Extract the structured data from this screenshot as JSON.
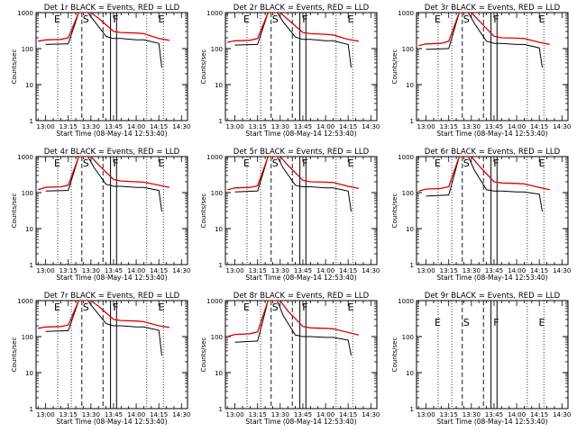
{
  "figure": {
    "xlabel": "Start Time (08-May-14 12:53:40)",
    "ylabel": "Counts/sec",
    "x_ticks": [
      "13:00",
      "13:15",
      "13:30",
      "13:45",
      "14:00",
      "14:15",
      "14:30"
    ],
    "y_ticks": [
      "1",
      "10",
      "100",
      "1000"
    ],
    "marker_letters": {
      "E": "E",
      "S": "S",
      "F": "F"
    },
    "colors": {
      "events": "#000000",
      "lld": "#dd0000",
      "axes": "#000000"
    }
  },
  "chart_data": [
    {
      "type": "line",
      "title": "Det 1r BLACK = Events, RED = LLD",
      "xlim": [
        "12:53:40",
        "14:34:00"
      ],
      "ylim": [
        1,
        1000
      ],
      "yscale": "log",
      "series": [
        {
          "name": "Events",
          "x": [
            "13:00",
            "13:14",
            "13:15",
            "13:22",
            "13:25",
            "13:28",
            "13:32",
            "13:40",
            "13:43",
            "13:45",
            "13:50",
            "14:00",
            "14:05",
            "14:15",
            "14:17"
          ],
          "y": [
            130,
            135,
            135,
            1000,
            1000,
            1000,
            600,
            220,
            200,
            190,
            190,
            175,
            175,
            140,
            30
          ]
        },
        {
          "name": "LLD",
          "x": [
            "12:55",
            "13:00",
            "13:10",
            "13:15",
            "13:22",
            "13:25",
            "13:30",
            "13:35",
            "13:45",
            "13:50",
            "14:00",
            "14:05",
            "14:15",
            "14:22"
          ],
          "y": [
            160,
            175,
            180,
            200,
            1000,
            1000,
            1000,
            700,
            300,
            280,
            270,
            260,
            190,
            170
          ]
        }
      ]
    },
    {
      "type": "line",
      "title": "Det 2r BLACK = Events, RED = LLD",
      "xlim": [
        "12:53:40",
        "14:34:00"
      ],
      "ylim": [
        1,
        1000
      ],
      "yscale": "log",
      "series": [
        {
          "name": "Events",
          "x": [
            "13:00",
            "13:14",
            "13:15",
            "13:22",
            "13:25",
            "13:28",
            "13:32",
            "13:40",
            "13:43",
            "13:45",
            "13:50",
            "14:00",
            "14:05",
            "14:15",
            "14:17"
          ],
          "y": [
            125,
            130,
            130,
            1000,
            1000,
            1000,
            550,
            210,
            190,
            180,
            180,
            165,
            165,
            130,
            30
          ]
        },
        {
          "name": "LLD",
          "x": [
            "12:55",
            "13:00",
            "13:10",
            "13:15",
            "13:22",
            "13:25",
            "13:30",
            "13:35",
            "13:45",
            "13:50",
            "14:00",
            "14:05",
            "14:15",
            "14:22"
          ],
          "y": [
            150,
            165,
            170,
            190,
            1000,
            1000,
            1000,
            650,
            280,
            260,
            250,
            240,
            180,
            160
          ]
        }
      ]
    },
    {
      "type": "line",
      "title": "Det 3r BLACK = Events, RED = LLD",
      "xlim": [
        "12:53:40",
        "14:34:00"
      ],
      "ylim": [
        1,
        1000
      ],
      "yscale": "log",
      "series": [
        {
          "name": "Events",
          "x": [
            "13:00",
            "13:14",
            "13:15",
            "13:22",
            "13:25",
            "13:28",
            "13:32",
            "13:40",
            "13:43",
            "13:45",
            "13:50",
            "14:00",
            "14:05",
            "14:15",
            "14:17"
          ],
          "y": [
            95,
            100,
            100,
            1000,
            1000,
            1000,
            500,
            160,
            150,
            140,
            140,
            130,
            130,
            105,
            30
          ]
        },
        {
          "name": "LLD",
          "x": [
            "12:55",
            "13:00",
            "13:10",
            "13:15",
            "13:22",
            "13:25",
            "13:30",
            "13:35",
            "13:45",
            "13:50",
            "14:00",
            "14:05",
            "14:15",
            "14:22"
          ],
          "y": [
            120,
            135,
            140,
            160,
            1000,
            1000,
            1000,
            600,
            220,
            200,
            195,
            190,
            150,
            130
          ]
        }
      ]
    },
    {
      "type": "line",
      "title": "Det 4r BLACK = Events, RED = LLD",
      "xlim": [
        "12:53:40",
        "14:34:00"
      ],
      "ylim": [
        1,
        1000
      ],
      "yscale": "log",
      "series": [
        {
          "name": "Events",
          "x": [
            "13:00",
            "13:14",
            "13:15",
            "13:22",
            "13:25",
            "13:28",
            "13:32",
            "13:40",
            "13:43",
            "13:45",
            "13:50",
            "14:00",
            "14:05",
            "14:15",
            "14:17"
          ],
          "y": [
            110,
            115,
            115,
            1000,
            1000,
            1000,
            500,
            170,
            160,
            150,
            150,
            140,
            140,
            115,
            30
          ]
        },
        {
          "name": "LLD",
          "x": [
            "12:55",
            "13:00",
            "13:10",
            "13:15",
            "13:22",
            "13:25",
            "13:30",
            "13:35",
            "13:45",
            "13:50",
            "14:00",
            "14:05",
            "14:15",
            "14:22"
          ],
          "y": [
            120,
            140,
            145,
            160,
            1000,
            1000,
            1000,
            600,
            230,
            210,
            200,
            195,
            160,
            140
          ]
        }
      ]
    },
    {
      "type": "line",
      "title": "Det 5r BLACK = Events, RED = LLD",
      "xlim": [
        "12:53:40",
        "14:34:00"
      ],
      "ylim": [
        1,
        1000
      ],
      "yscale": "log",
      "series": [
        {
          "name": "Events",
          "x": [
            "13:00",
            "13:14",
            "13:15",
            "13:22",
            "13:25",
            "13:28",
            "13:32",
            "13:40",
            "13:43",
            "13:45",
            "13:50",
            "14:00",
            "14:05",
            "14:15",
            "14:17"
          ],
          "y": [
            105,
            110,
            110,
            1000,
            1000,
            1000,
            480,
            160,
            150,
            145,
            145,
            135,
            135,
            110,
            30
          ]
        },
        {
          "name": "LLD",
          "x": [
            "12:55",
            "13:00",
            "13:10",
            "13:15",
            "13:22",
            "13:25",
            "13:30",
            "13:35",
            "13:45",
            "13:50",
            "14:00",
            "14:05",
            "14:15",
            "14:22"
          ],
          "y": [
            120,
            135,
            140,
            155,
            1000,
            1000,
            1000,
            580,
            220,
            200,
            195,
            190,
            150,
            130
          ]
        }
      ]
    },
    {
      "type": "line",
      "title": "Det 6r BLACK = Events, RED = LLD",
      "xlim": [
        "12:53:40",
        "14:34:00"
      ],
      "ylim": [
        1,
        1000
      ],
      "yscale": "log",
      "series": [
        {
          "name": "Events",
          "x": [
            "13:00",
            "13:14",
            "13:15",
            "13:22",
            "13:25",
            "13:28",
            "13:32",
            "13:40",
            "13:43",
            "13:45",
            "13:50",
            "14:00",
            "14:05",
            "14:15",
            "14:17"
          ],
          "y": [
            80,
            85,
            85,
            1000,
            1000,
            1000,
            420,
            120,
            115,
            110,
            110,
            105,
            105,
            90,
            30
          ]
        },
        {
          "name": "LLD",
          "x": [
            "12:55",
            "13:00",
            "13:10",
            "13:15",
            "13:22",
            "13:25",
            "13:30",
            "13:35",
            "13:45",
            "13:50",
            "14:00",
            "14:05",
            "14:15",
            "14:22"
          ],
          "y": [
            110,
            125,
            130,
            145,
            1000,
            1000,
            1000,
            560,
            200,
            185,
            180,
            175,
            140,
            120
          ]
        }
      ]
    },
    {
      "type": "line",
      "title": "Det 7r BLACK = Events, RED = LLD",
      "xlim": [
        "12:53:40",
        "14:34:00"
      ],
      "ylim": [
        1,
        1000
      ],
      "yscale": "log",
      "series": [
        {
          "name": "Events",
          "x": [
            "13:00",
            "13:14",
            "13:15",
            "13:22",
            "13:25",
            "13:28",
            "13:32",
            "13:40",
            "13:43",
            "13:45",
            "13:50",
            "14:00",
            "14:05",
            "14:15",
            "14:17"
          ],
          "y": [
            140,
            145,
            145,
            1000,
            1000,
            1000,
            600,
            230,
            210,
            200,
            200,
            185,
            185,
            150,
            30
          ]
        },
        {
          "name": "LLD",
          "x": [
            "12:55",
            "13:00",
            "13:10",
            "13:15",
            "13:22",
            "13:25",
            "13:30",
            "13:35",
            "13:45",
            "13:50",
            "14:00",
            "14:05",
            "14:15",
            "14:22"
          ],
          "y": [
            170,
            185,
            190,
            210,
            1000,
            1000,
            1000,
            700,
            300,
            280,
            270,
            260,
            200,
            180
          ]
        }
      ]
    },
    {
      "type": "line",
      "title": "Det 8r BLACK = Events, RED = LLD",
      "xlim": [
        "12:53:40",
        "14:34:00"
      ],
      "ylim": [
        1,
        1000
      ],
      "yscale": "log",
      "series": [
        {
          "name": "Events",
          "x": [
            "13:00",
            "13:14",
            "13:15",
            "13:22",
            "13:25",
            "13:28",
            "13:32",
            "13:40",
            "13:43",
            "13:45",
            "13:50",
            "14:00",
            "14:05",
            "14:15",
            "14:17"
          ],
          "y": [
            70,
            75,
            75,
            1000,
            1000,
            1000,
            380,
            110,
            105,
            100,
            100,
            95,
            95,
            80,
            30
          ]
        },
        {
          "name": "LLD",
          "x": [
            "12:55",
            "13:00",
            "13:10",
            "13:15",
            "13:22",
            "13:25",
            "13:30",
            "13:35",
            "13:45",
            "13:50",
            "14:00",
            "14:05",
            "14:15",
            "14:22"
          ],
          "y": [
            100,
            115,
            120,
            135,
            1000,
            1000,
            1000,
            520,
            190,
            175,
            170,
            165,
            130,
            110
          ]
        }
      ]
    },
    {
      "type": "line",
      "title": "Det 9r BLACK = Events, RED = LLD",
      "xlim": [
        "12:53:40",
        "14:34:00"
      ],
      "ylim": [
        1,
        1000
      ],
      "yscale": "log",
      "series": []
    }
  ]
}
